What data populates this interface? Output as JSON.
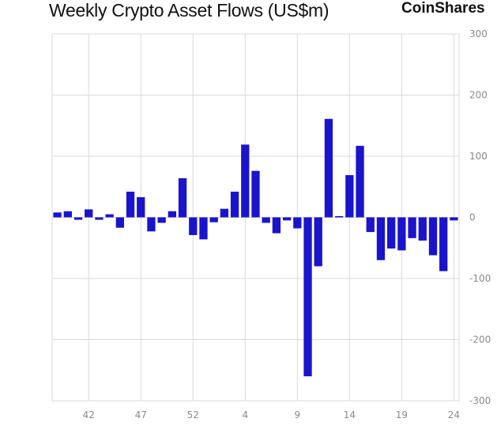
{
  "header": {
    "title": "Weekly Crypto Asset Flows (US$m)",
    "brand": "CoinShares"
  },
  "colors": {
    "bar": "#1a14cc",
    "grid": "#d9d9d9",
    "tick_text": "#8a8a8a"
  },
  "chart_data": {
    "type": "bar",
    "title": "Weekly Crypto Asset Flows (US$m)",
    "xlabel": "",
    "ylabel": "",
    "ylim": [
      -300,
      300
    ],
    "yticks": [
      300,
      200,
      100,
      0,
      -100,
      -200,
      -300
    ],
    "y_axis_side": "right",
    "grid": true,
    "x_tick_labels": [
      {
        "label": "42",
        "index": 3.5
      },
      {
        "label": "47",
        "index": 8.5
      },
      {
        "label": "52",
        "index": 13.5
      },
      {
        "label": "4",
        "index": 18.5
      },
      {
        "label": "9",
        "index": 23.5
      },
      {
        "label": "14",
        "index": 28.5
      },
      {
        "label": "19",
        "index": 33.5
      },
      {
        "label": "24",
        "index": 38.5
      }
    ],
    "values": [
      8,
      10,
      -4,
      13,
      -4,
      5,
      -17,
      42,
      33,
      -23,
      -9,
      10,
      64,
      -29,
      -36,
      -8,
      14,
      42,
      119,
      76,
      -9,
      -26,
      -5,
      -18,
      -260,
      -80,
      161,
      2,
      69,
      117,
      -24,
      -70,
      -51,
      -54,
      -34,
      -38,
      -62,
      -88,
      -5
    ]
  }
}
